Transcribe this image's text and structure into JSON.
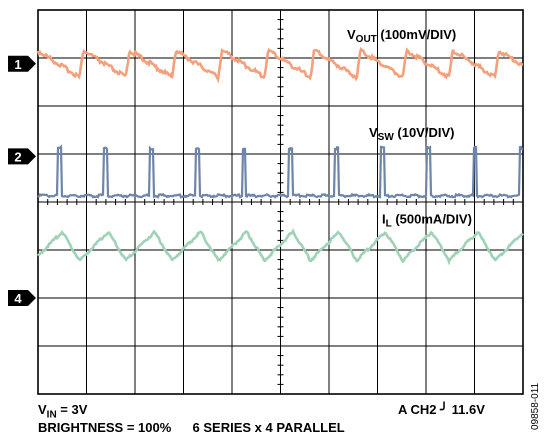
{
  "chart_data": {
    "type": "line",
    "title": "",
    "grid": true,
    "divisions": {
      "horizontal": 10,
      "vertical": 8
    },
    "series": [
      {
        "name": "VOUT",
        "label_main": "V",
        "label_sub": "OUT",
        "label_rest": " (100mV/DIV)",
        "channel_marker": "1",
        "color": "#f4a07a",
        "waveform": "sawtooth",
        "cycles_per_screen": 10.5,
        "amplitude_div": 0.28
      },
      {
        "name": "VSW",
        "label_main": "V",
        "label_sub": "SW",
        "label_rest": " (10V/DIV)",
        "channel_marker": "2",
        "color": "#6e85aa",
        "waveform": "pulse",
        "cycles_per_screen": 10.5,
        "amplitude_div": 1.0
      },
      {
        "name": "IL",
        "label_main": "I",
        "label_sub": "L",
        "label_rest": " (500mA/DIV)",
        "channel_marker": "4",
        "color": "#9fd2b6",
        "waveform": "ramp",
        "cycles_per_screen": 10.5,
        "amplitude_div": 0.3
      }
    ]
  },
  "footer": {
    "vin_main": "V",
    "vin_sub": "IN",
    "vin_rest": " = 3V",
    "brightness": "BRIGHTNESS = 100%",
    "config": "6 SERIES x 4 PARALLEL",
    "trigger_prefix": "A  CH2",
    "trigger_symbol": "╯",
    "trigger_value": "11.6V"
  },
  "figure_id": "09858-011",
  "colors": {
    "grid": "#000000",
    "vout": "#f4a07a",
    "vsw": "#6e85aa",
    "il": "#9fd2b6"
  }
}
